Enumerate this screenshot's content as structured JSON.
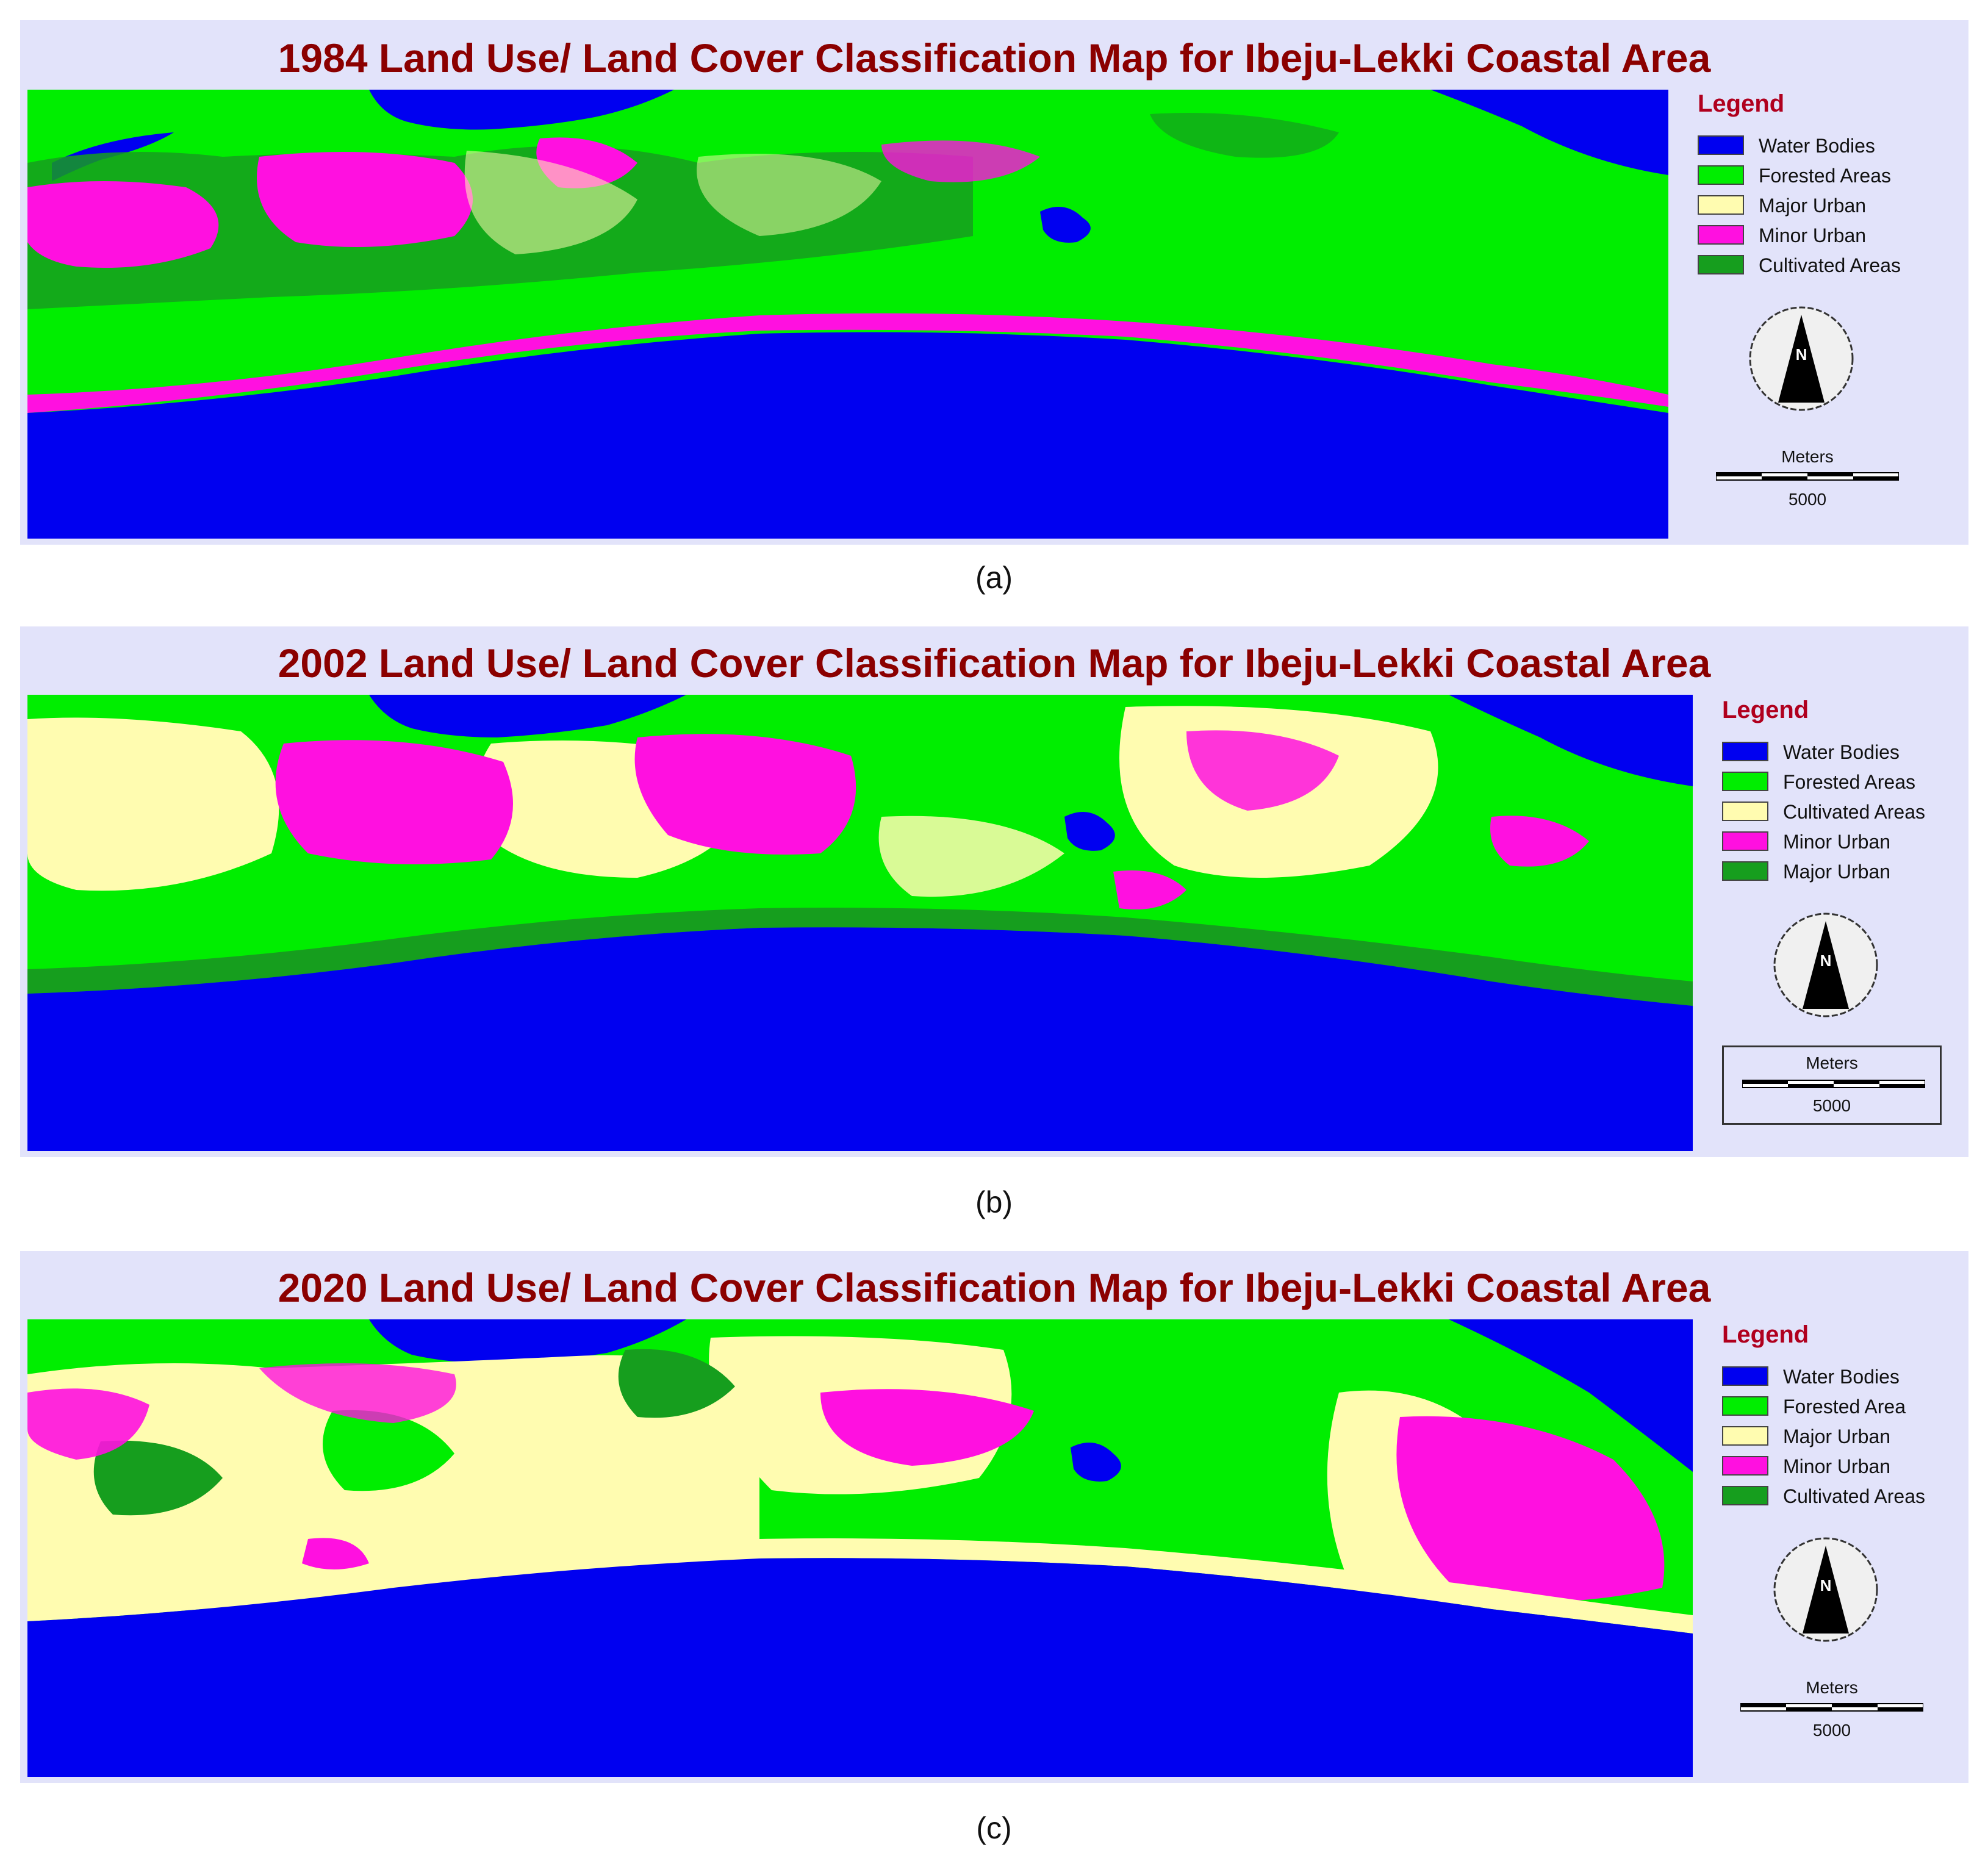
{
  "colors": {
    "water": "#0000f0",
    "forest": "#00ee00",
    "cultivated_dark": "#169e1e",
    "major_urban": "#fffcb0",
    "minor_urban": "#ff10e0",
    "panel_bg": "#e2e3fa",
    "title_red": "#8b0000"
  },
  "panels": [
    {
      "title": "1984 Land Use/ Land Cover Classification Map for Ibeju-Lekki Coastal Area",
      "caption": "(a)",
      "legend": {
        "title": "Legend",
        "items": [
          {
            "label": "Water Bodies",
            "color": "#0000f0"
          },
          {
            "label": "Forested Areas",
            "color": "#00ee00"
          },
          {
            "label": "Major Urban",
            "color": "#fffcb0"
          },
          {
            "label": "Minor Urban",
            "color": "#ff10e0"
          },
          {
            "label": "Cultivated Areas",
            "color": "#169e1e"
          }
        ],
        "north_label": "N",
        "scale_units": "Meters",
        "scale_value": "5000"
      }
    },
    {
      "title": "2002 Land Use/ Land Cover Classification Map for Ibeju-Lekki Coastal Area",
      "caption": "(b)",
      "legend": {
        "title": "Legend",
        "items": [
          {
            "label": "Water Bodies",
            "color": "#0000f0"
          },
          {
            "label": "Forested Areas",
            "color": "#00ee00"
          },
          {
            "label": "Cultivated Areas",
            "color": "#fffcb0"
          },
          {
            "label": "Minor Urban",
            "color": "#ff10e0"
          },
          {
            "label": "Major Urban",
            "color": "#169e1e"
          }
        ],
        "north_label": "N",
        "scale_units": "Meters",
        "scale_value": "5000"
      }
    },
    {
      "title": "2020 Land Use/ Land Cover Classification Map for Ibeju-Lekki Coastal Area",
      "caption": "(c)",
      "legend": {
        "title": "Legend",
        "items": [
          {
            "label": "Water Bodies",
            "color": "#0000f0"
          },
          {
            "label": "Forested Area",
            "color": "#00ee00"
          },
          {
            "label": "Major Urban",
            "color": "#fffcb0"
          },
          {
            "label": "Minor Urban",
            "color": "#ff10e0"
          },
          {
            "label": "Cultivated Areas",
            "color": "#169e1e"
          }
        ],
        "north_label": "N",
        "scale_units": "Meters",
        "scale_value": "5000"
      }
    }
  ]
}
